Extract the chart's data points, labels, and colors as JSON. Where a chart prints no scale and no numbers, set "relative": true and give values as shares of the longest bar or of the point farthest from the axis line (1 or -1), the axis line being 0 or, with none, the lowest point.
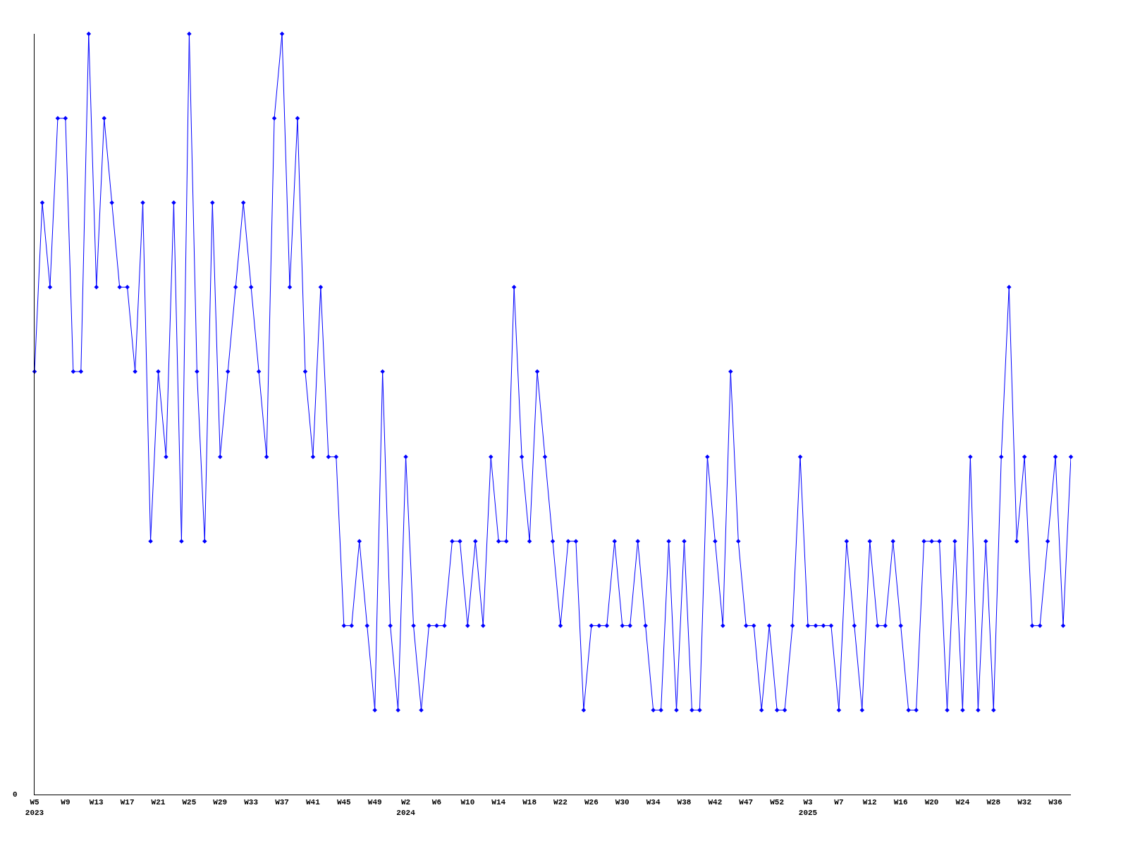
{
  "chart_data": {
    "type": "line",
    "relative": true,
    "categories": [
      "W5\n2023",
      null,
      null,
      null,
      "W9",
      null,
      null,
      null,
      "W13",
      null,
      null,
      null,
      "W17",
      null,
      null,
      null,
      "W21",
      null,
      null,
      null,
      "W25",
      null,
      null,
      null,
      "W29",
      null,
      null,
      null,
      "W33",
      null,
      null,
      null,
      "W37",
      null,
      null,
      null,
      "W41",
      null,
      null,
      null,
      "W45",
      null,
      null,
      null,
      "W49",
      null,
      null,
      null,
      "W2\n2024",
      null,
      null,
      null,
      "W6",
      null,
      null,
      null,
      "W10",
      null,
      null,
      null,
      "W14",
      null,
      null,
      null,
      "W18",
      null,
      null,
      null,
      "W22",
      null,
      null,
      null,
      "W26",
      null,
      null,
      null,
      "W30",
      null,
      null,
      null,
      "W34",
      null,
      null,
      null,
      "W38",
      null,
      null,
      null,
      "W42",
      null,
      null,
      null,
      "W47",
      null,
      null,
      null,
      "W52",
      null,
      null,
      null,
      "W3\n2025",
      null,
      null,
      null,
      "W7",
      null,
      null,
      null,
      "W12",
      null,
      null,
      null,
      "W16",
      null,
      null,
      null,
      "W20",
      null,
      null,
      null,
      "W24",
      null,
      null,
      null,
      "W28",
      null,
      null,
      null,
      "W32",
      null,
      null,
      null,
      "W36",
      null,
      null
    ],
    "series": [
      {
        "color": "#0000ff",
        "values": [
          0.556,
          0.778,
          0.667,
          0.889,
          0.889,
          0.556,
          0.556,
          1,
          0.667,
          0.889,
          0.778,
          0.667,
          0.667,
          0.556,
          0.778,
          0.333,
          0.556,
          0.444,
          0.778,
          0.333,
          1,
          0.556,
          0.333,
          0.778,
          0.444,
          0.556,
          0.667,
          0.778,
          0.667,
          0.556,
          0.444,
          0.889,
          1,
          0.667,
          0.889,
          0.556,
          0.444,
          0.667,
          0.444,
          0.444,
          0.222,
          0.222,
          0.333,
          0.222,
          0.111,
          0.556,
          0.222,
          0.111,
          0.444,
          0.222,
          0.111,
          0.222,
          0.222,
          0.222,
          0.333,
          0.333,
          0.222,
          0.333,
          0.222,
          0.444,
          0.333,
          0.333,
          0.667,
          0.444,
          0.333,
          0.556,
          0.444,
          0.333,
          0.222,
          0.333,
          0.333,
          0.111,
          0.222,
          0.222,
          0.222,
          0.333,
          0.222,
          0.222,
          0.333,
          0.222,
          0.111,
          0.111,
          0.333,
          0.111,
          0.333,
          0.111,
          0.111,
          0.444,
          0.333,
          0.222,
          0.556,
          0.333,
          0.222,
          0.222,
          0.111,
          0.222,
          0.111,
          0.111,
          0.222,
          0.444,
          0.222,
          0.222,
          0.222,
          0.222,
          0.111,
          0.333,
          0.222,
          0.111,
          0.333,
          0.222,
          0.222,
          0.333,
          0.222,
          0.111,
          0.111,
          0.333,
          0.333,
          0.333,
          0.111,
          0.333,
          0.111,
          0.444,
          0.111,
          0.333,
          0.111,
          0.444,
          0.667,
          0.333,
          0.444,
          0.222,
          0.222,
          0.333,
          0.444,
          0.222,
          0.444
        ]
      }
    ],
    "annotations": [
      "0"
    ],
    "marker": "diamond",
    "line_style": "solid"
  }
}
